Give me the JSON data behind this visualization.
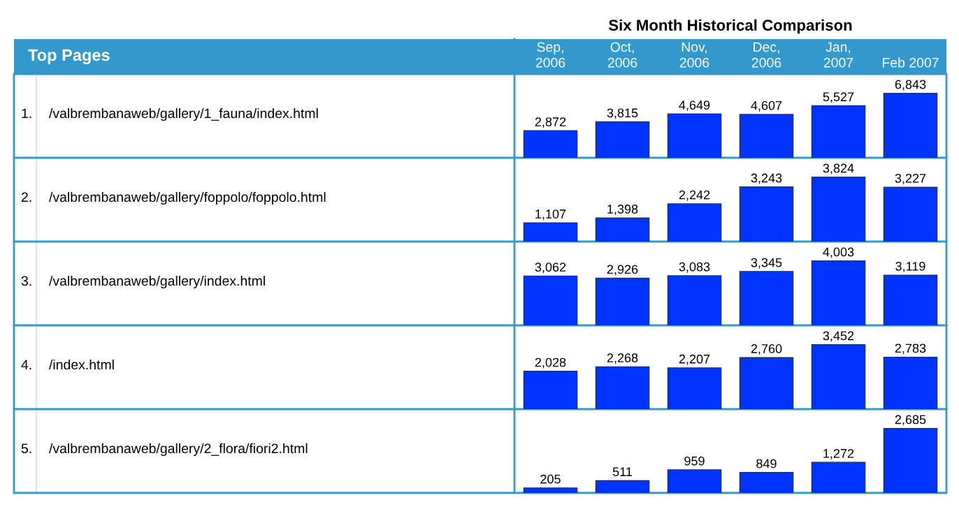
{
  "chart_data": [
    {
      "type": "bar",
      "title": "Six Month Historical Comparison",
      "ylabel": "/valbrembanaweb/gallery/1_fauna/index.html",
      "annotations": [
        "1.",
        "Top Pages"
      ],
      "categories": [
        "Sep,\n2006",
        "Oct,\n2006",
        "Nov,\n2006",
        "Dec,\n2006",
        "Jan,\n2007",
        "Feb 2007"
      ],
      "values": [
        2872,
        3815,
        4649,
        4607,
        5527,
        6843
      ],
      "value_labels": [
        "2,872",
        "3,815",
        "4,649",
        "4,607",
        "5,527",
        "6,843"
      ],
      "color": "#0033ff",
      "tick_labels": "x",
      "grid": false
    },
    {
      "type": "bar",
      "ylabel": "/valbrembanaweb/gallery/foppolo/foppolo.html",
      "annotations": [
        "2."
      ],
      "categories": [
        null,
        null,
        null,
        null,
        null,
        null
      ],
      "values": [
        1107,
        1398,
        2242,
        3243,
        3824,
        3227
      ],
      "value_labels": [
        "1,107",
        "1,398",
        "2,242",
        "3,243",
        "3,824",
        "3,227"
      ],
      "color": "#0033ff",
      "grid": false
    },
    {
      "type": "bar",
      "ylabel": "/valbrembanaweb/gallery/index.html",
      "annotations": [
        "3."
      ],
      "categories": [
        null,
        null,
        null,
        null,
        null,
        null
      ],
      "values": [
        3062,
        2926,
        3083,
        3345,
        4003,
        3119
      ],
      "value_labels": [
        "3,062",
        "2,926",
        "3,083",
        "3,345",
        "4,003",
        "3,119"
      ],
      "color": "#0033ff",
      "grid": false
    },
    {
      "type": "bar",
      "ylabel": "/index.html",
      "annotations": [
        "4."
      ],
      "categories": [
        null,
        null,
        null,
        null,
        null,
        null
      ],
      "values": [
        2028,
        2268,
        2207,
        2760,
        3452,
        2783
      ],
      "value_labels": [
        "2,028",
        "2,268",
        "2,207",
        "2,760",
        "3,452",
        "2,783"
      ],
      "color": "#0033ff",
      "grid": false
    },
    {
      "type": "bar",
      "ylabel": "/valbrembanaweb/gallery/2_flora/fiori2.html",
      "annotations": [
        "5."
      ],
      "categories": [
        null,
        null,
        null,
        null,
        null,
        null
      ],
      "values": [
        205,
        511,
        959,
        849,
        1272,
        2685
      ],
      "value_labels": [
        "205",
        "511",
        "959",
        "849",
        "1,272",
        "2,685"
      ],
      "color": "#0033ff",
      "grid": false
    }
  ]
}
